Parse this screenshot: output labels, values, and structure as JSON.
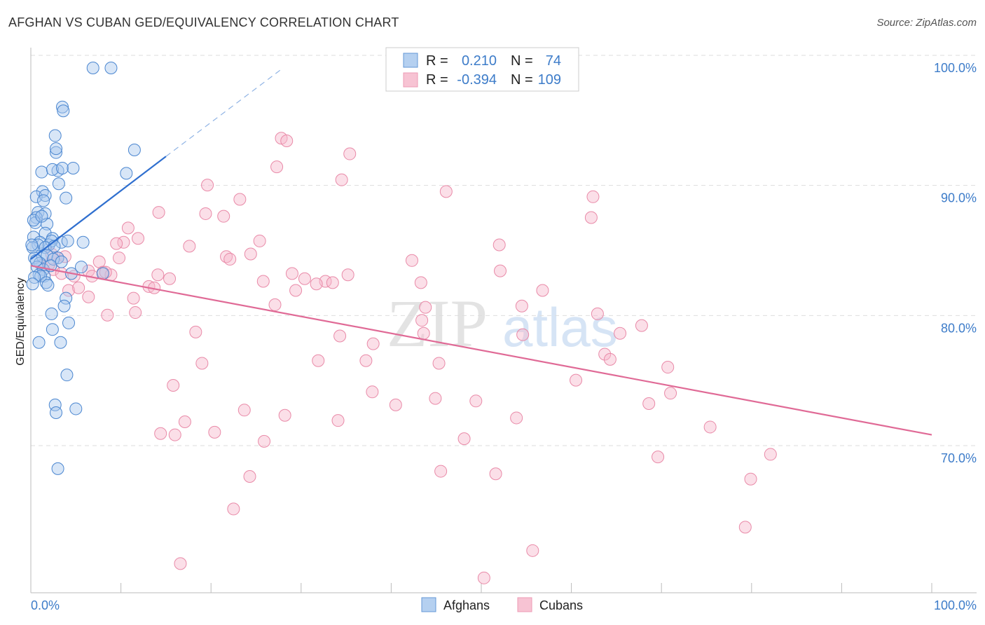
{
  "title": "AFGHAN VS CUBAN GED/EQUIVALENCY CORRELATION CHART",
  "source": "Source: ZipAtlas.com",
  "watermark": {
    "zip": "ZIP",
    "atlas": "atlas"
  },
  "colors": {
    "afghan_fill": "#a9c8ee",
    "afghan_stroke": "#4a86d0",
    "afghan_line": "#2f6fcf",
    "cuban_fill": "#f6b9cc",
    "cuban_stroke": "#e98aa8",
    "cuban_line": "#e06a96",
    "tick": "#3d7cc9",
    "grid": "#dddddd"
  },
  "legend": {
    "rows": [
      {
        "r_label": "R =",
        "r_value": "0.210",
        "n_label": "N =",
        "n_value": "74"
      },
      {
        "r_label": "R =",
        "r_value": "-0.394",
        "n_label": "N =",
        "n_value": "109"
      }
    ]
  },
  "bottom_legend": [
    "Afghans",
    "Cubans"
  ],
  "chart_data": {
    "type": "scatter",
    "title": "AFGHAN VS CUBAN GED/EQUIVALENCY CORRELATION CHART",
    "xlabel": "",
    "ylabel": "GED/Equivalency",
    "xlim": [
      0,
      100
    ],
    "ylim": [
      60,
      101
    ],
    "x_tick_labels": [
      "0.0%",
      "100.0%"
    ],
    "y_ticks": [
      70,
      80,
      90,
      100
    ],
    "y_tick_labels": [
      "70.0%",
      "80.0%",
      "90.0%",
      "100.0%"
    ],
    "grid": true,
    "series": [
      {
        "name": "Afghans",
        "r": 0.21,
        "n": 74,
        "trend": {
          "x": [
            0,
            15
          ],
          "y": [
            85.3,
            93.2
          ],
          "dashed_to": [
            28,
            100
          ]
        },
        "points": [
          [
            6.9,
            100
          ],
          [
            8.9,
            100
          ],
          [
            3.5,
            97
          ],
          [
            3.6,
            96.7
          ],
          [
            2.7,
            94.8
          ],
          [
            2.8,
            93.5
          ],
          [
            2.8,
            93.8
          ],
          [
            11.5,
            93.7
          ],
          [
            3.0,
            92.1
          ],
          [
            1.2,
            92.0
          ],
          [
            2.4,
            92.2
          ],
          [
            3.5,
            92.3
          ],
          [
            4.7,
            92.3
          ],
          [
            10.6,
            91.9
          ],
          [
            3.1,
            91.1
          ],
          [
            1.3,
            90.5
          ],
          [
            0.6,
            90.1
          ],
          [
            1.6,
            90.2
          ],
          [
            3.9,
            90.0
          ],
          [
            1.4,
            89.8
          ],
          [
            0.8,
            88.9
          ],
          [
            1.6,
            88.8
          ],
          [
            0.6,
            88.5
          ],
          [
            0.5,
            88.1
          ],
          [
            1.8,
            88.0
          ],
          [
            1.6,
            87.3
          ],
          [
            2.4,
            86.9
          ],
          [
            0.3,
            87.0
          ],
          [
            1.0,
            86.6
          ],
          [
            0.8,
            86.4
          ],
          [
            0.2,
            86.2
          ],
          [
            2.0,
            86.4
          ],
          [
            3.4,
            86.6
          ],
          [
            2.3,
            86.7
          ],
          [
            4.1,
            86.7
          ],
          [
            5.8,
            86.6
          ],
          [
            1.6,
            86.2
          ],
          [
            2.6,
            86.3
          ],
          [
            0.4,
            85.4
          ],
          [
            1.3,
            85.5
          ],
          [
            1.8,
            85.6
          ],
          [
            3.0,
            85.4
          ],
          [
            2.5,
            85.3
          ],
          [
            3.4,
            85.1
          ],
          [
            1.0,
            85.0
          ],
          [
            0.7,
            84.7
          ],
          [
            1.4,
            84.5
          ],
          [
            5.6,
            84.7
          ],
          [
            1.5,
            84.0
          ],
          [
            0.9,
            84.1
          ],
          [
            1.1,
            84.0
          ],
          [
            4.5,
            84.2
          ],
          [
            8.0,
            84.2
          ],
          [
            0.4,
            83.9
          ],
          [
            1.7,
            83.5
          ],
          [
            0.2,
            83.4
          ],
          [
            1.9,
            83.3
          ],
          [
            3.9,
            82.3
          ],
          [
            3.7,
            81.7
          ],
          [
            2.3,
            81.1
          ],
          [
            4.2,
            80.4
          ],
          [
            2.4,
            79.9
          ],
          [
            0.9,
            78.9
          ],
          [
            3.3,
            78.9
          ],
          [
            4.0,
            76.4
          ],
          [
            2.7,
            74.1
          ],
          [
            5.0,
            73.8
          ],
          [
            2.8,
            73.5
          ],
          [
            3.0,
            69.2
          ],
          [
            0.3,
            88.3
          ],
          [
            0.1,
            86.4
          ],
          [
            1.2,
            88.6
          ],
          [
            2.2,
            84.8
          ],
          [
            0.6,
            85.2
          ]
        ]
      },
      {
        "name": "Cubans",
        "r": -0.394,
        "n": 109,
        "trend": {
          "x": [
            0,
            100
          ],
          "y": [
            84.8,
            71.8
          ]
        },
        "points": [
          [
            27.8,
            94.6
          ],
          [
            28.4,
            94.4
          ],
          [
            35.4,
            93.4
          ],
          [
            27.3,
            92.4
          ],
          [
            34.5,
            91.4
          ],
          [
            19.6,
            91.0
          ],
          [
            46.1,
            90.5
          ],
          [
            62.4,
            90.1
          ],
          [
            23.2,
            89.9
          ],
          [
            14.2,
            88.9
          ],
          [
            19.4,
            88.8
          ],
          [
            21.4,
            88.6
          ],
          [
            62.2,
            88.5
          ],
          [
            10.8,
            87.7
          ],
          [
            11.9,
            86.9
          ],
          [
            10.3,
            86.6
          ],
          [
            9.5,
            86.5
          ],
          [
            17.6,
            86.3
          ],
          [
            25.4,
            86.7
          ],
          [
            52.0,
            86.4
          ],
          [
            21.7,
            85.5
          ],
          [
            24.4,
            85.7
          ],
          [
            22.1,
            85.3
          ],
          [
            9.8,
            85.4
          ],
          [
            2.3,
            85.7
          ],
          [
            3.0,
            85.4
          ],
          [
            3.8,
            85.5
          ],
          [
            7.6,
            85.1
          ],
          [
            1.2,
            84.8
          ],
          [
            42.3,
            85.2
          ],
          [
            52.1,
            84.4
          ],
          [
            14.1,
            84.1
          ],
          [
            15.4,
            83.8
          ],
          [
            2.5,
            84.5
          ],
          [
            3.4,
            84.2
          ],
          [
            4.8,
            84.0
          ],
          [
            6.4,
            84.4
          ],
          [
            8.0,
            84.3
          ],
          [
            8.9,
            84.1
          ],
          [
            29.0,
            84.2
          ],
          [
            30.4,
            83.8
          ],
          [
            32.7,
            83.6
          ],
          [
            35.2,
            84.1
          ],
          [
            31.7,
            83.4
          ],
          [
            25.8,
            83.6
          ],
          [
            43.3,
            83.5
          ],
          [
            13.1,
            83.2
          ],
          [
            13.7,
            83.1
          ],
          [
            56.8,
            82.9
          ],
          [
            29.4,
            82.9
          ],
          [
            4.2,
            82.9
          ],
          [
            5.3,
            83.1
          ],
          [
            6.4,
            82.4
          ],
          [
            11.4,
            82.3
          ],
          [
            27.1,
            81.8
          ],
          [
            43.8,
            81.6
          ],
          [
            54.5,
            81.7
          ],
          [
            62.9,
            81.1
          ],
          [
            43.4,
            80.6
          ],
          [
            11.6,
            81.2
          ],
          [
            8.5,
            81.0
          ],
          [
            67.8,
            80.2
          ],
          [
            18.3,
            79.7
          ],
          [
            34.3,
            79.4
          ],
          [
            43.6,
            79.6
          ],
          [
            54.6,
            79.5
          ],
          [
            65.4,
            79.6
          ],
          [
            38.0,
            78.8
          ],
          [
            63.7,
            78.0
          ],
          [
            64.3,
            77.6
          ],
          [
            37.2,
            77.5
          ],
          [
            31.9,
            77.5
          ],
          [
            19.0,
            77.3
          ],
          [
            45.3,
            77.3
          ],
          [
            70.7,
            77.0
          ],
          [
            60.5,
            76.0
          ],
          [
            15.8,
            75.6
          ],
          [
            37.9,
            75.1
          ],
          [
            71.0,
            75.0
          ],
          [
            44.9,
            74.6
          ],
          [
            49.4,
            74.4
          ],
          [
            53.9,
            73.1
          ],
          [
            68.6,
            74.2
          ],
          [
            40.5,
            74.1
          ],
          [
            23.7,
            73.7
          ],
          [
            28.2,
            73.3
          ],
          [
            17.1,
            72.8
          ],
          [
            34.1,
            72.9
          ],
          [
            20.4,
            72.0
          ],
          [
            14.4,
            71.9
          ],
          [
            16.0,
            71.8
          ],
          [
            48.1,
            71.5
          ],
          [
            75.4,
            72.4
          ],
          [
            25.9,
            71.3
          ],
          [
            69.6,
            70.1
          ],
          [
            82.1,
            70.3
          ],
          [
            45.5,
            69.0
          ],
          [
            51.6,
            68.8
          ],
          [
            24.3,
            68.6
          ],
          [
            79.9,
            68.4
          ],
          [
            22.5,
            66.1
          ],
          [
            79.3,
            64.7
          ],
          [
            16.6,
            61.9
          ],
          [
            55.7,
            62.9
          ],
          [
            50.3,
            60.8
          ],
          [
            8.3,
            84.3
          ],
          [
            6.8,
            84.0
          ],
          [
            2.0,
            84.9
          ],
          [
            33.5,
            83.5
          ]
        ]
      }
    ]
  }
}
